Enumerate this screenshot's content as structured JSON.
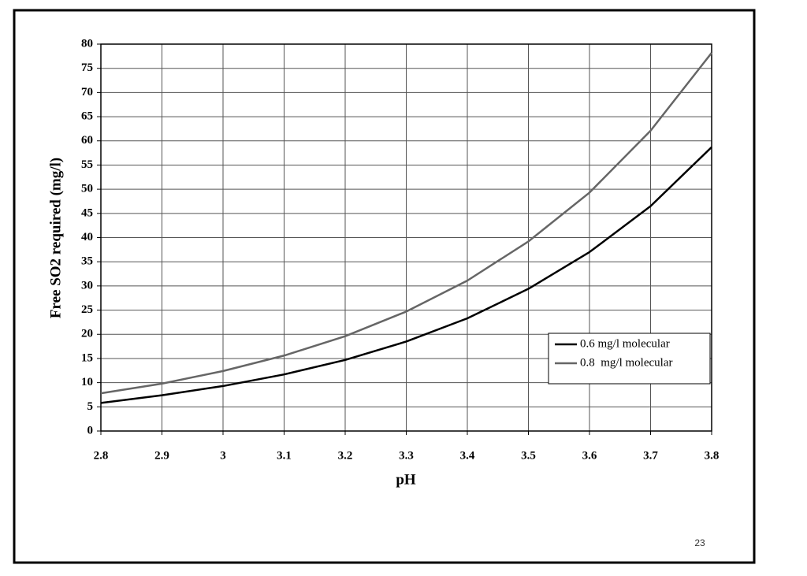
{
  "chart_data": {
    "type": "line",
    "x": [
      2.8,
      2.9,
      3.0,
      3.1,
      3.2,
      3.3,
      3.4,
      3.5,
      3.6,
      3.7,
      3.8
    ],
    "series": [
      {
        "name": "0.6 mg/l molecular",
        "color": "#000000",
        "values": [
          5.8,
          7.4,
          9.3,
          11.7,
          14.7,
          18.5,
          23.3,
          29.4,
          37.0,
          46.5,
          58.7
        ]
      },
      {
        "name": "0.8  mg/l molecular",
        "color": "#666666",
        "values": [
          7.8,
          9.8,
          12.4,
          15.6,
          19.6,
          24.7,
          31.1,
          39.2,
          49.3,
          62.1,
          78.2
        ]
      }
    ],
    "x_label": "pH",
    "y_label": "Free SO2 required (mg/l)",
    "xlim": [
      2.8,
      3.8
    ],
    "xticks": [
      2.8,
      2.9,
      3,
      3.1,
      3.2,
      3.3,
      3.4,
      3.5,
      3.6,
      3.7,
      3.8
    ],
    "ylim": [
      0,
      80
    ],
    "yticks": [
      0,
      5,
      10,
      15,
      20,
      25,
      30,
      35,
      40,
      45,
      50,
      55,
      60,
      65,
      70,
      75,
      80
    ],
    "grid": true,
    "legend": "lower right"
  },
  "slide_number": "23"
}
